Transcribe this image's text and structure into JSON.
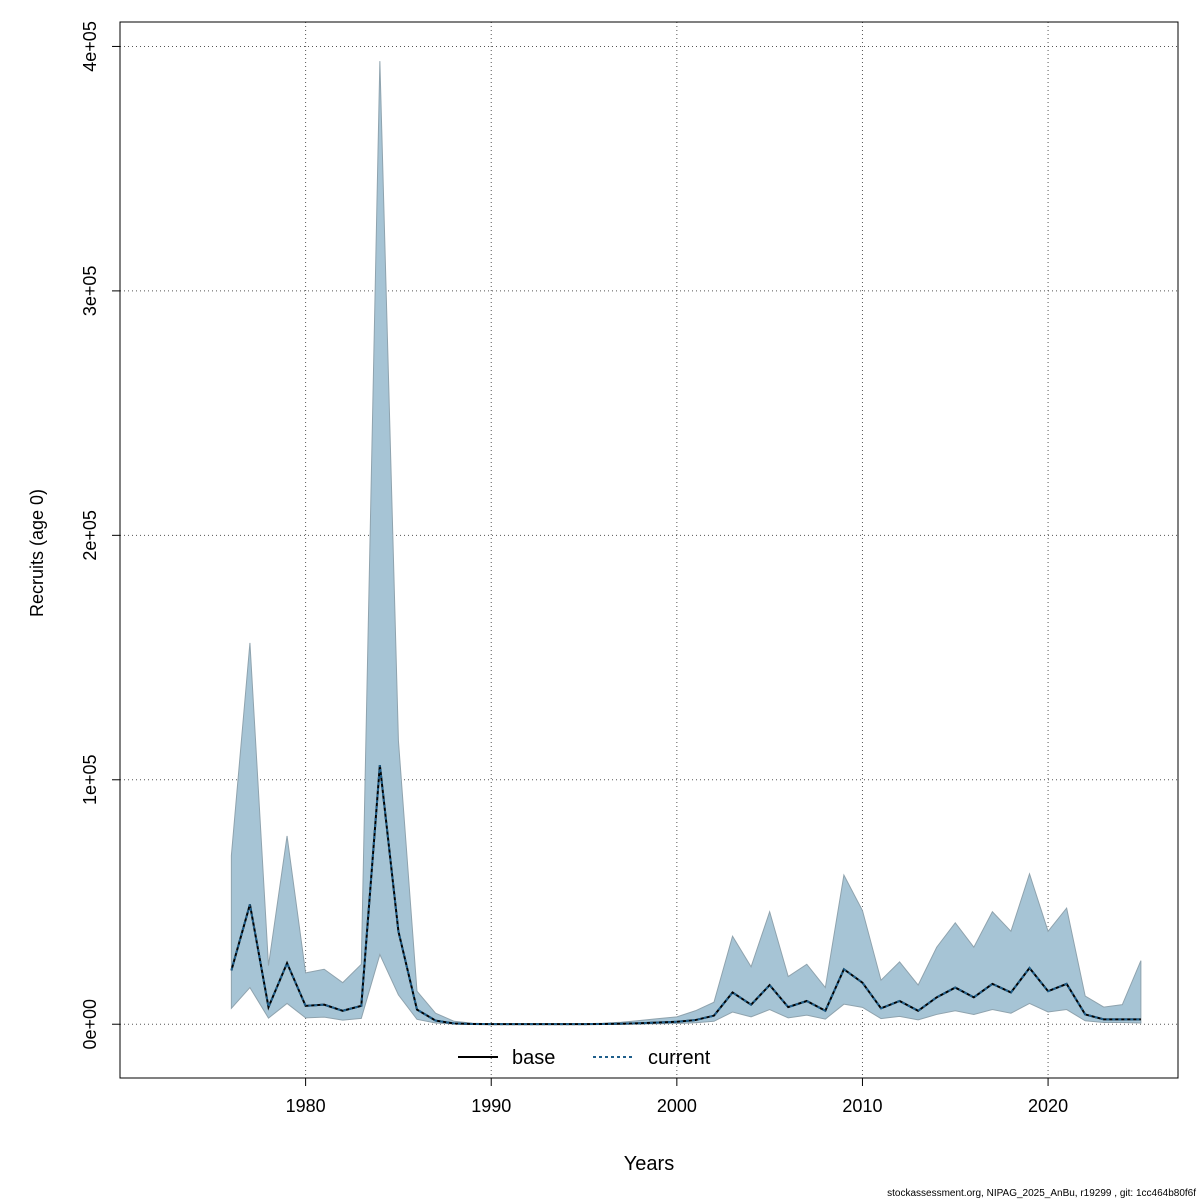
{
  "chart_data": {
    "type": "area",
    "title": "",
    "xlabel": "Years",
    "ylabel": "Recruits (age 0)",
    "xlim": [
      1970,
      2027
    ],
    "ylim": [
      -22000,
      410000
    ],
    "xticks": [
      1980,
      1990,
      2000,
      2010,
      2020
    ],
    "yticks": [
      0,
      100000,
      200000,
      300000,
      400000
    ],
    "ytick_labels": [
      "0e+00",
      "1e+05",
      "2e+05",
      "3e+05",
      "4e+05"
    ],
    "grid": true,
    "legend_position": "bottom-center",
    "band_color": "#a6c4d5",
    "series": [
      {
        "name": "base",
        "style": "solid",
        "color": "#000000",
        "x": [
          1976,
          1977,
          1978,
          1979,
          1980,
          1981,
          1982,
          1983,
          1984,
          1985,
          1986,
          1987,
          1988,
          1989,
          1990,
          1991,
          1992,
          1993,
          1994,
          1995,
          1996,
          1997,
          1998,
          1999,
          2000,
          2001,
          2002,
          2003,
          2004,
          2005,
          2006,
          2007,
          2008,
          2009,
          2010,
          2011,
          2012,
          2013,
          2014,
          2015,
          2016,
          2017,
          2018,
          2019,
          2020,
          2021,
          2022,
          2023,
          2024,
          2025
        ],
        "values": [
          22000,
          49000,
          7000,
          25000,
          7500,
          8000,
          5500,
          7500,
          106000,
          38000,
          6000,
          1500,
          300,
          100,
          50,
          50,
          50,
          50,
          50,
          50,
          100,
          200,
          400,
          700,
          1000,
          1700,
          3500,
          13000,
          8000,
          16000,
          7000,
          9500,
          5500,
          22500,
          17000,
          6500,
          9500,
          5500,
          11000,
          15000,
          11000,
          16500,
          13000,
          23000,
          13500,
          16500,
          4000,
          2000,
          2000,
          2000
        ]
      },
      {
        "name": "current",
        "style": "dotted",
        "color": "#1f5f8b",
        "x": [
          1976,
          1977,
          1978,
          1979,
          1980,
          1981,
          1982,
          1983,
          1984,
          1985,
          1986,
          1987,
          1988,
          1989,
          1990,
          1991,
          1992,
          1993,
          1994,
          1995,
          1996,
          1997,
          1998,
          1999,
          2000,
          2001,
          2002,
          2003,
          2004,
          2005,
          2006,
          2007,
          2008,
          2009,
          2010,
          2011,
          2012,
          2013,
          2014,
          2015,
          2016,
          2017,
          2018,
          2019,
          2020,
          2021,
          2022,
          2023,
          2024,
          2025
        ],
        "values": [
          22000,
          49000,
          7000,
          25000,
          7500,
          8000,
          5500,
          7500,
          106000,
          38000,
          6000,
          1500,
          300,
          100,
          50,
          50,
          50,
          50,
          50,
          50,
          100,
          200,
          400,
          700,
          1000,
          1700,
          3500,
          13000,
          8000,
          16000,
          7000,
          9500,
          5500,
          22500,
          17000,
          6500,
          9500,
          5500,
          11000,
          15000,
          11000,
          16500,
          13000,
          23000,
          13500,
          16500,
          4000,
          2000,
          2000,
          2000
        ]
      }
    ],
    "band": {
      "x": [
        1976,
        1977,
        1978,
        1979,
        1980,
        1981,
        1982,
        1983,
        1984,
        1985,
        1986,
        1987,
        1988,
        1989,
        1990,
        1991,
        1992,
        1993,
        1994,
        1995,
        1996,
        1997,
        1998,
        1999,
        2000,
        2001,
        2002,
        2003,
        2004,
        2005,
        2006,
        2007,
        2008,
        2009,
        2010,
        2011,
        2012,
        2013,
        2014,
        2015,
        2016,
        2017,
        2018,
        2019,
        2020,
        2021,
        2022,
        2023,
        2024,
        2025
      ],
      "upper": [
        69000,
        156000,
        24000,
        77000,
        21000,
        22500,
        17000,
        24500,
        394000,
        116000,
        13500,
        4500,
        1200,
        400,
        200,
        200,
        200,
        200,
        200,
        200,
        400,
        800,
        1500,
        2300,
        3000,
        5500,
        9000,
        36000,
        23500,
        46000,
        19500,
        24500,
        15000,
        61000,
        46500,
        18000,
        25500,
        16000,
        31500,
        41500,
        31500,
        46000,
        38000,
        61500,
        38000,
        47500,
        11500,
        7000,
        8000,
        26000
      ],
      "lower": [
        6500,
        15000,
        2500,
        8500,
        2600,
        2900,
        1700,
        2400,
        28500,
        12000,
        2000,
        500,
        100,
        40,
        10,
        10,
        10,
        10,
        10,
        10,
        20,
        40,
        100,
        200,
        300,
        600,
        1200,
        5000,
        3000,
        6000,
        2600,
        3700,
        2100,
        8200,
        6900,
        2300,
        3200,
        1800,
        4000,
        5500,
        4000,
        6000,
        4500,
        8500,
        5000,
        6000,
        1400,
        700,
        700,
        500
      ]
    }
  },
  "footer": "stockassessment.org, NIPAG_2025_AnBu, r19299 , git: 1cc464b80f6f"
}
